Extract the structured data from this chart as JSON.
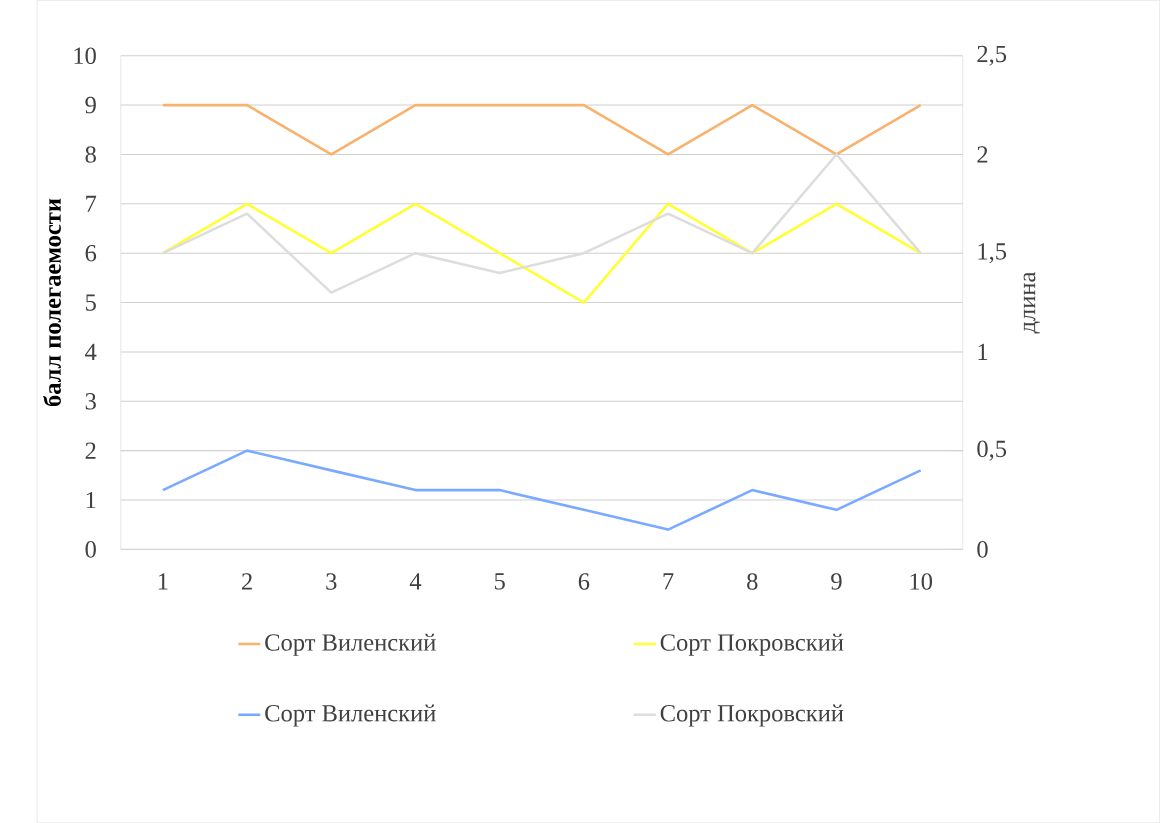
{
  "chart_data": {
    "type": "line",
    "categories": [
      "1",
      "2",
      "3",
      "4",
      "5",
      "6",
      "7",
      "8",
      "9",
      "10"
    ],
    "ylabel": "балл полегаемости",
    "y2label": "длина",
    "ylim": [
      0,
      10
    ],
    "yticks": [
      0,
      1,
      2,
      3,
      4,
      5,
      6,
      7,
      8,
      9,
      10
    ],
    "y2lim": [
      0,
      2.5
    ],
    "y2ticks": [
      0,
      {
        "value": 0.5,
        "label": "0,5"
      },
      1,
      {
        "value": 1.5,
        "label": "1,5"
      },
      2,
      {
        "value": 2.5,
        "label": "2,5"
      }
    ],
    "grid": "y",
    "legend": "bottom",
    "series": [
      {
        "name": "Сорт Виленский",
        "color": "#f9b26e",
        "values": [
          9,
          9,
          8,
          9,
          9,
          9,
          8,
          9,
          8,
          9
        ]
      },
      {
        "name": "Сорт Покровский",
        "color": "#ffff33",
        "values": [
          6,
          7,
          6,
          7,
          6,
          5,
          7,
          6,
          7,
          6
        ]
      },
      {
        "name": "Сорт Виленский",
        "color": "#7aaaff",
        "axis": "y2",
        "values": [
          0.3,
          0.5,
          0.4,
          0.3,
          0.3,
          0.2,
          0.1,
          0.3,
          0.2,
          0.4
        ]
      },
      {
        "name": "Сорт Покровский",
        "color": "#dddddd",
        "axis": "y2",
        "values": [
          1.5,
          1.7,
          1.3,
          1.5,
          1.4,
          1.5,
          1.7,
          1.5,
          2.0,
          1.5
        ]
      }
    ]
  }
}
